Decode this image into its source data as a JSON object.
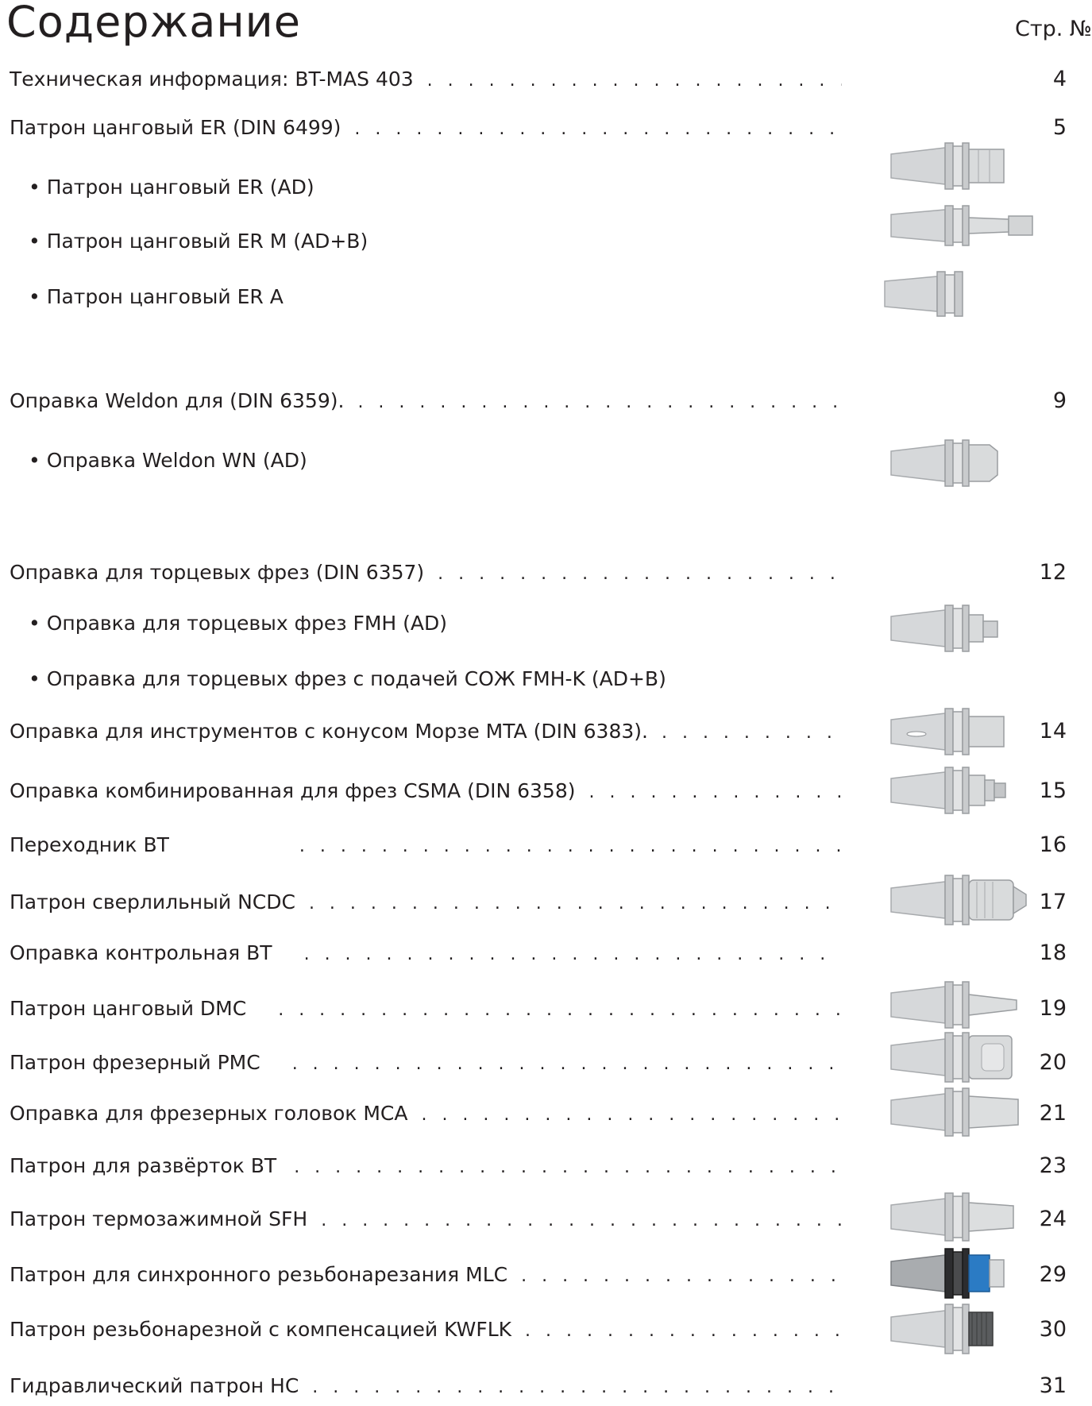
{
  "header": {
    "title": "Содержание",
    "page_column_label": "Стр. №"
  },
  "entries": [
    {
      "label": "Техническая информация: BT-MAS 403",
      "page": "4"
    },
    {
      "label": "Патрон цанговый ER (DIN 6499)",
      "page": "5"
    },
    {
      "label": "• Патрон цанговый  ER (AD)",
      "page": ""
    },
    {
      "label": "• Патрон цанговый  ER M (AD+B)",
      "page": ""
    },
    {
      "label": "• Патрон цанговый  ER A",
      "page": ""
    },
    {
      "label": "Оправка Weldon для (DIN 6359).",
      "page": "9"
    },
    {
      "label": "• Оправка Weldon WN (AD)",
      "page": ""
    },
    {
      "label": "Оправка для торцевых фрез (DIN 6357)",
      "page": "12"
    },
    {
      "label": "• Оправка для торцевых фрез FMH (AD)",
      "page": ""
    },
    {
      "label": "• Оправка для торцевых фрез с подачей СОЖ FMH-K (AD+B)",
      "page": ""
    },
    {
      "label": "Оправка для инструментов с конусом Морзе MTA (DIN 6383).",
      "page": "14"
    },
    {
      "label": "Оправка комбинированная для фрез CSMA (DIN 6358)",
      "page": "15"
    },
    {
      "label": "Переходник BT",
      "page": "16"
    },
    {
      "label": "Патрон сверлильный NCDC",
      "page": "17"
    },
    {
      "label": "Оправка контрольная BT",
      "page": "18"
    },
    {
      "label": "Патрон цанговый DMC",
      "page": "19"
    },
    {
      "label": "Патрон фрезерный PMC",
      "page": "20"
    },
    {
      "label": "Оправка для фрезерных головок MCA",
      "page": "21"
    },
    {
      "label": "Патрон для развёрток BT",
      "page": "23"
    },
    {
      "label": "Патрон термозажимной SFH",
      "page": "24"
    },
    {
      "label": "Патрон для синхронного резьбонарезания MLC",
      "page": "29"
    },
    {
      "label": "Патрон резьбонарезной с компенсацией KWFLK",
      "page": "30"
    },
    {
      "label": "Гидравлический патрон HC",
      "page": "31"
    }
  ]
}
